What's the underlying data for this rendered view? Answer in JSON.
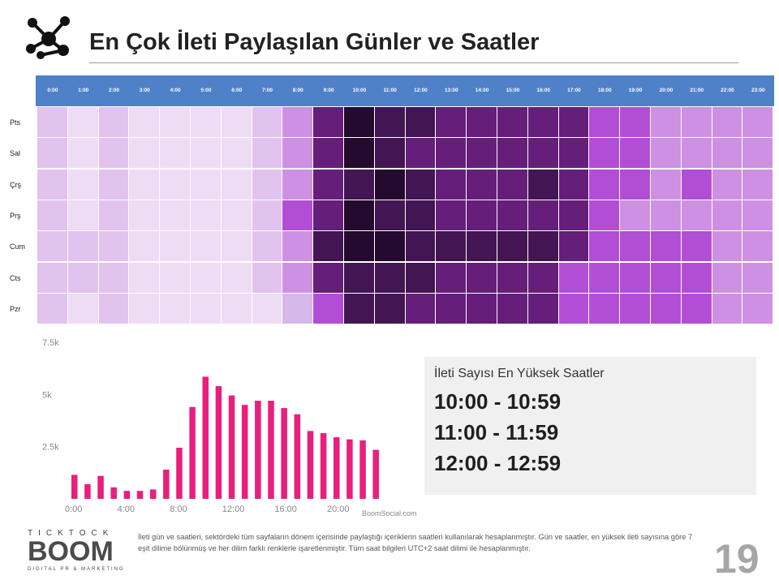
{
  "title": "En Çok İleti Paylaşılan Günler ve Saatler",
  "colors": {
    "header": "#4f81c8",
    "bar": "#e91e7d",
    "levels": [
      "#e2c2ef",
      "#eedcf5",
      "#d7b6ea",
      "#ce90e3",
      "#b24ed6",
      "#651e79",
      "#431553",
      "#240a2d"
    ]
  },
  "heatmap": {
    "hours": [
      "0:00",
      "1:00",
      "2:00",
      "3:00",
      "4:00",
      "5:00",
      "6:00",
      "7:00",
      "8:00",
      "9:00",
      "10:00",
      "11:00",
      "12:00",
      "13:00",
      "14:00",
      "15:00",
      "16:00",
      "17:00",
      "18:00",
      "19:00",
      "20:00",
      "21:00",
      "22:00",
      "23:00"
    ],
    "days": [
      "Pts",
      "Sal",
      "Çrş",
      "Prş",
      "Cum",
      "Cts",
      "Pzr"
    ],
    "levels": [
      [
        0,
        1,
        0,
        1,
        1,
        1,
        1,
        0,
        3,
        5,
        7,
        6,
        6,
        5,
        5,
        5,
        5,
        5,
        4,
        4,
        3,
        3,
        3,
        3
      ],
      [
        0,
        1,
        0,
        1,
        1,
        1,
        1,
        0,
        3,
        5,
        7,
        6,
        5,
        5,
        5,
        5,
        5,
        5,
        4,
        4,
        3,
        3,
        3,
        3
      ],
      [
        0,
        1,
        0,
        1,
        1,
        1,
        1,
        0,
        3,
        5,
        6,
        7,
        6,
        5,
        5,
        5,
        6,
        5,
        4,
        4,
        3,
        4,
        3,
        3
      ],
      [
        0,
        1,
        0,
        1,
        1,
        1,
        1,
        0,
        4,
        5,
        7,
        6,
        6,
        5,
        5,
        5,
        5,
        5,
        4,
        3,
        3,
        3,
        3,
        3
      ],
      [
        0,
        0,
        0,
        1,
        1,
        1,
        1,
        0,
        3,
        6,
        7,
        7,
        6,
        6,
        6,
        6,
        6,
        5,
        4,
        4,
        4,
        4,
        3,
        3
      ],
      [
        0,
        0,
        0,
        1,
        1,
        1,
        1,
        0,
        3,
        5,
        6,
        6,
        6,
        5,
        5,
        5,
        5,
        4,
        4,
        4,
        4,
        4,
        3,
        3
      ],
      [
        0,
        1,
        0,
        1,
        1,
        1,
        1,
        1,
        2,
        4,
        6,
        6,
        5,
        5,
        5,
        5,
        5,
        4,
        4,
        4,
        4,
        4,
        3,
        3
      ]
    ]
  },
  "chart_data": {
    "type": "bar",
    "categories": [
      "0:00",
      "1:00",
      "2:00",
      "3:00",
      "4:00",
      "5:00",
      "6:00",
      "7:00",
      "8:00",
      "9:00",
      "10:00",
      "11:00",
      "12:00",
      "13:00",
      "14:00",
      "15:00",
      "16:00",
      "17:00",
      "18:00",
      "19:00",
      "20:00",
      "21:00",
      "22:00",
      "23:00"
    ],
    "values": [
      1150,
      700,
      1100,
      550,
      380,
      380,
      450,
      1400,
      2450,
      4400,
      5850,
      5400,
      4950,
      4500,
      4700,
      4700,
      4350,
      4050,
      3250,
      3150,
      2950,
      2850,
      2800,
      2350
    ],
    "ylim": [
      0,
      7500
    ],
    "yticks": [
      "7.5k",
      "5k",
      "2.5k"
    ],
    "xticks": [
      "0:00",
      "4:00",
      "8:00",
      "12:00",
      "16:00",
      "20:00"
    ],
    "watermark": "BoomSocial.com"
  },
  "info": {
    "title": "İleti Sayısı En Yüksek  Saatler",
    "lines": [
      "10:00 - 10:59",
      "11:00 - 11:59",
      "12:00 - 12:59"
    ]
  },
  "brand": {
    "top": "TICKTOCK",
    "main": "BOOM",
    "sub": "DIGITAL PR & MARKETING"
  },
  "footnote": "İleti gün ve saatleri, sektördeki tüm sayfaların dönem içerisinde paylaştığı içeriklerin saatleri kullanılarak hesaplanmıştır. Gün ve saatler, en yüksek ileti sayısına göre 7 eşit dilime bölünmüş ve her dilim farklı renklerle işaretlenmiştir. Tüm saat bilgileri UTC+2 saat dilimi ile hesaplanmıştır.",
  "page_number": "19"
}
